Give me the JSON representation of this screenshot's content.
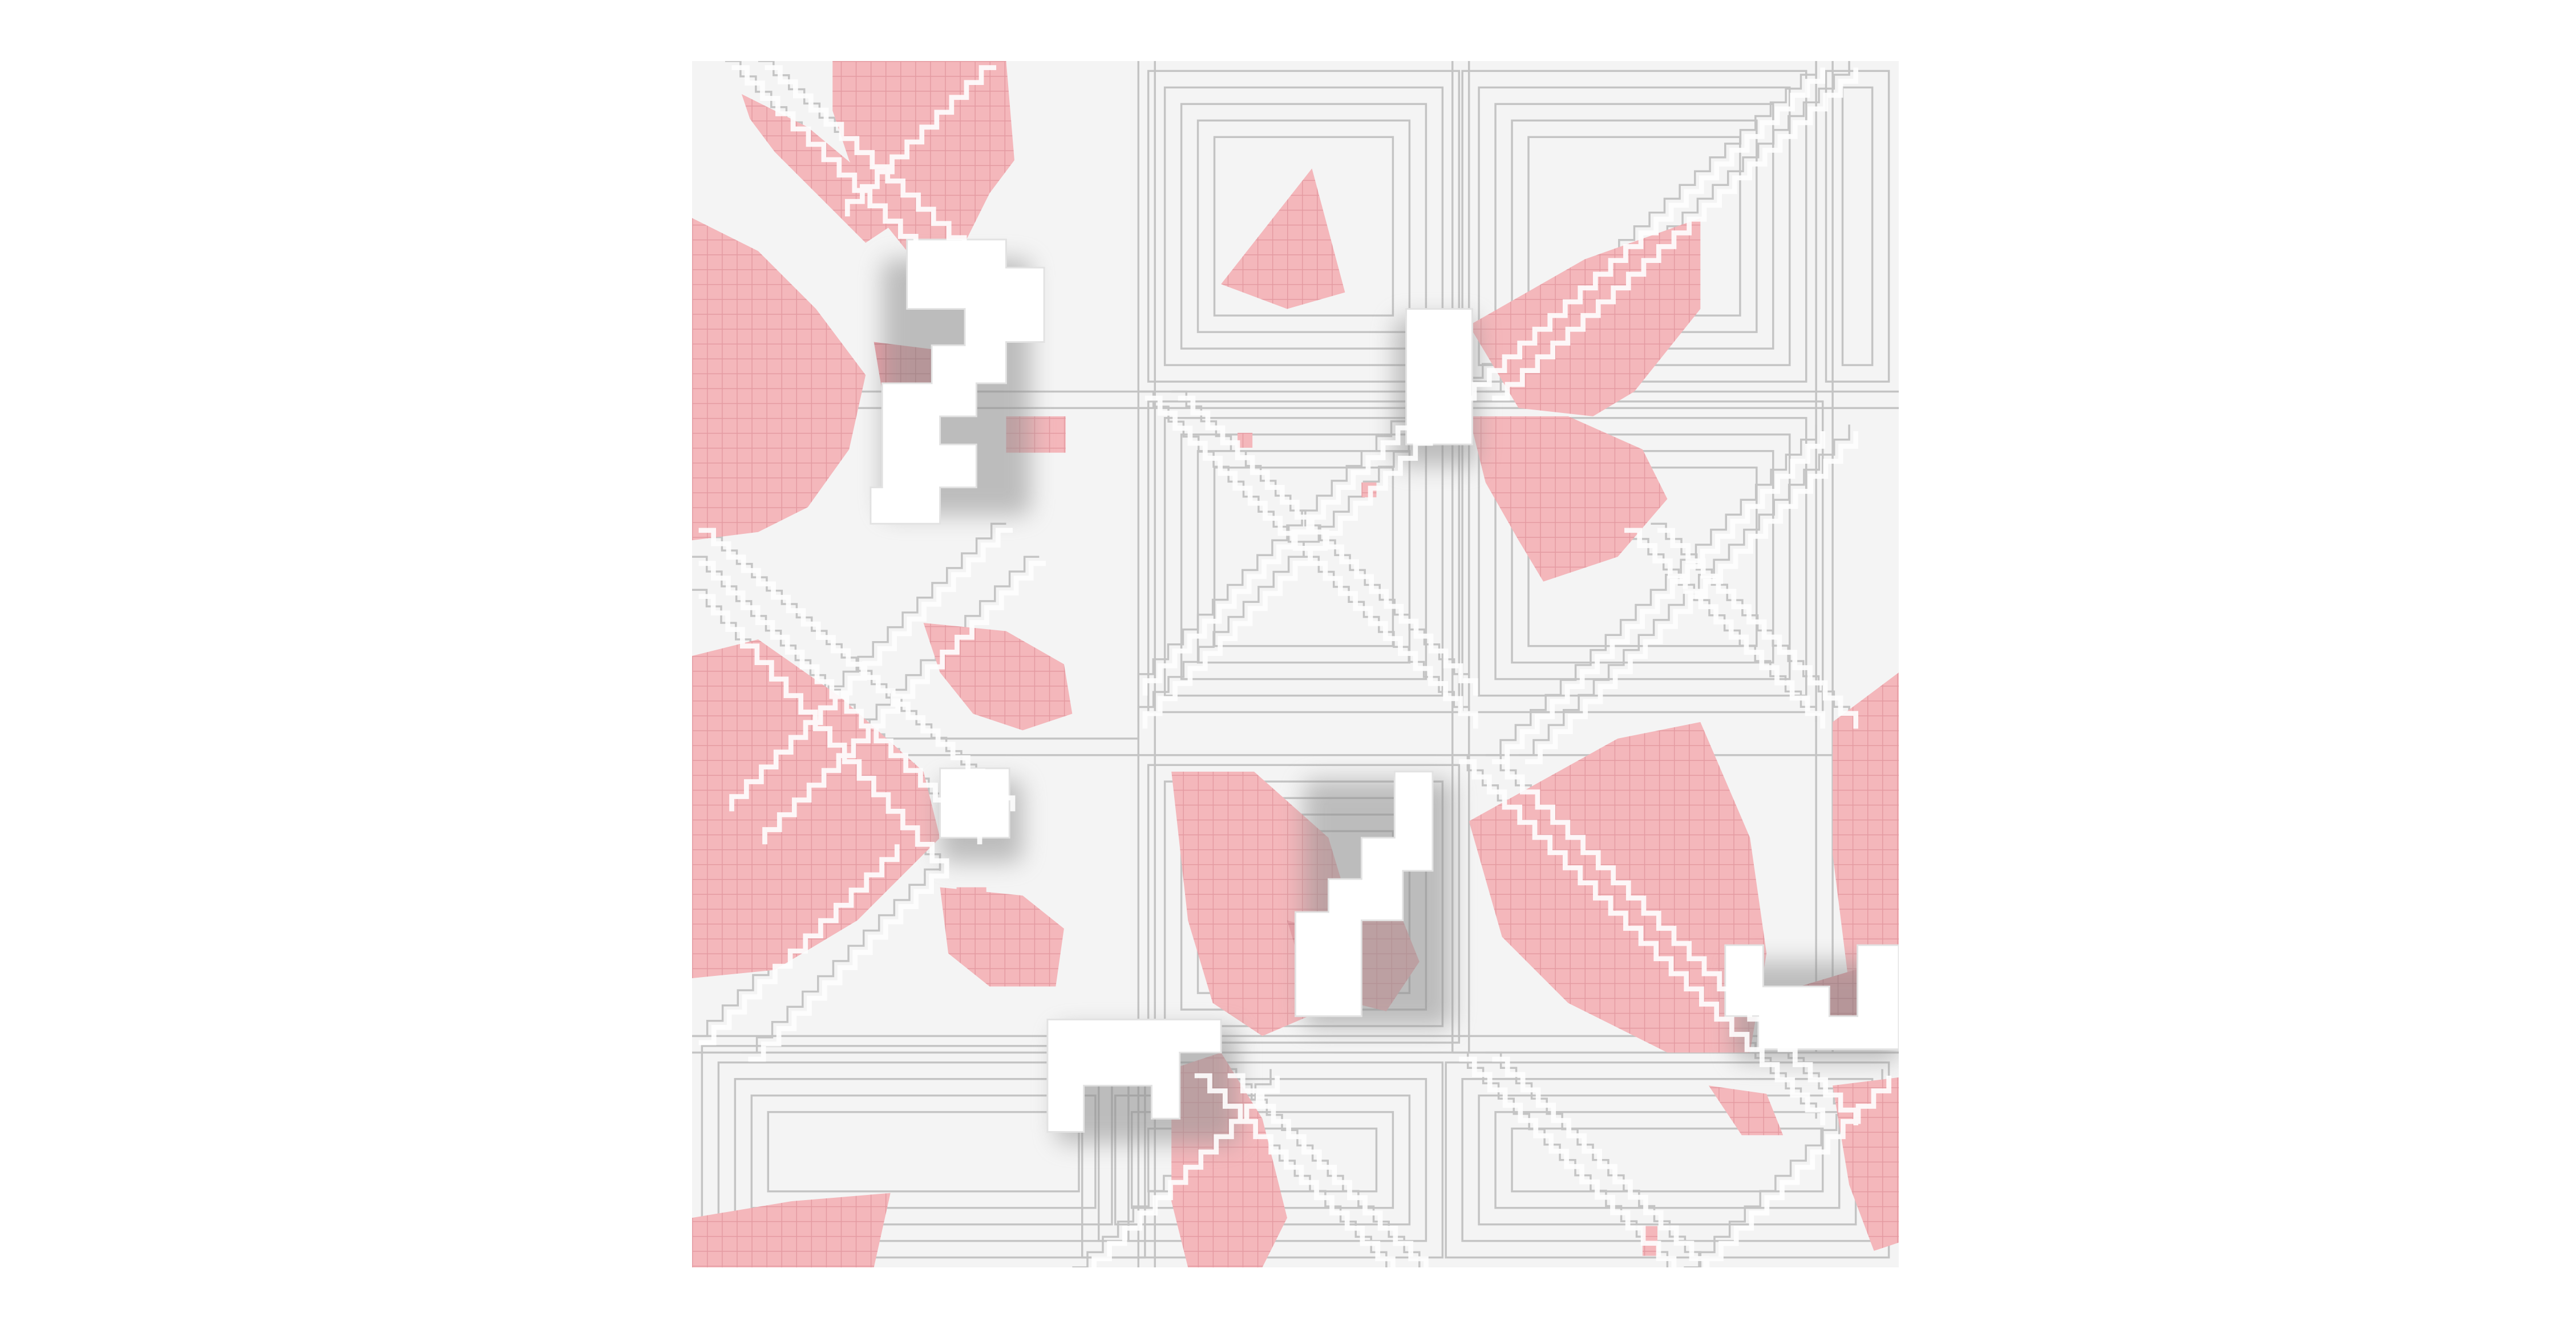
{
  "scene": {
    "kind": "voxel-distance-field-render",
    "colors": {
      "background": "#ffffff",
      "floor": "#f4f4f4",
      "terrace_edge": "#bdbdbd",
      "terrace_shadow": "#d6d6d6",
      "pink_light": "#f7c3c6",
      "pink_mid": "#f0aab0",
      "pink_deep": "#d9878f",
      "pink_grid": "#e79aa1",
      "obstacle": "#ffffff",
      "obstacle_shadow": "#9a9a9a"
    }
  }
}
